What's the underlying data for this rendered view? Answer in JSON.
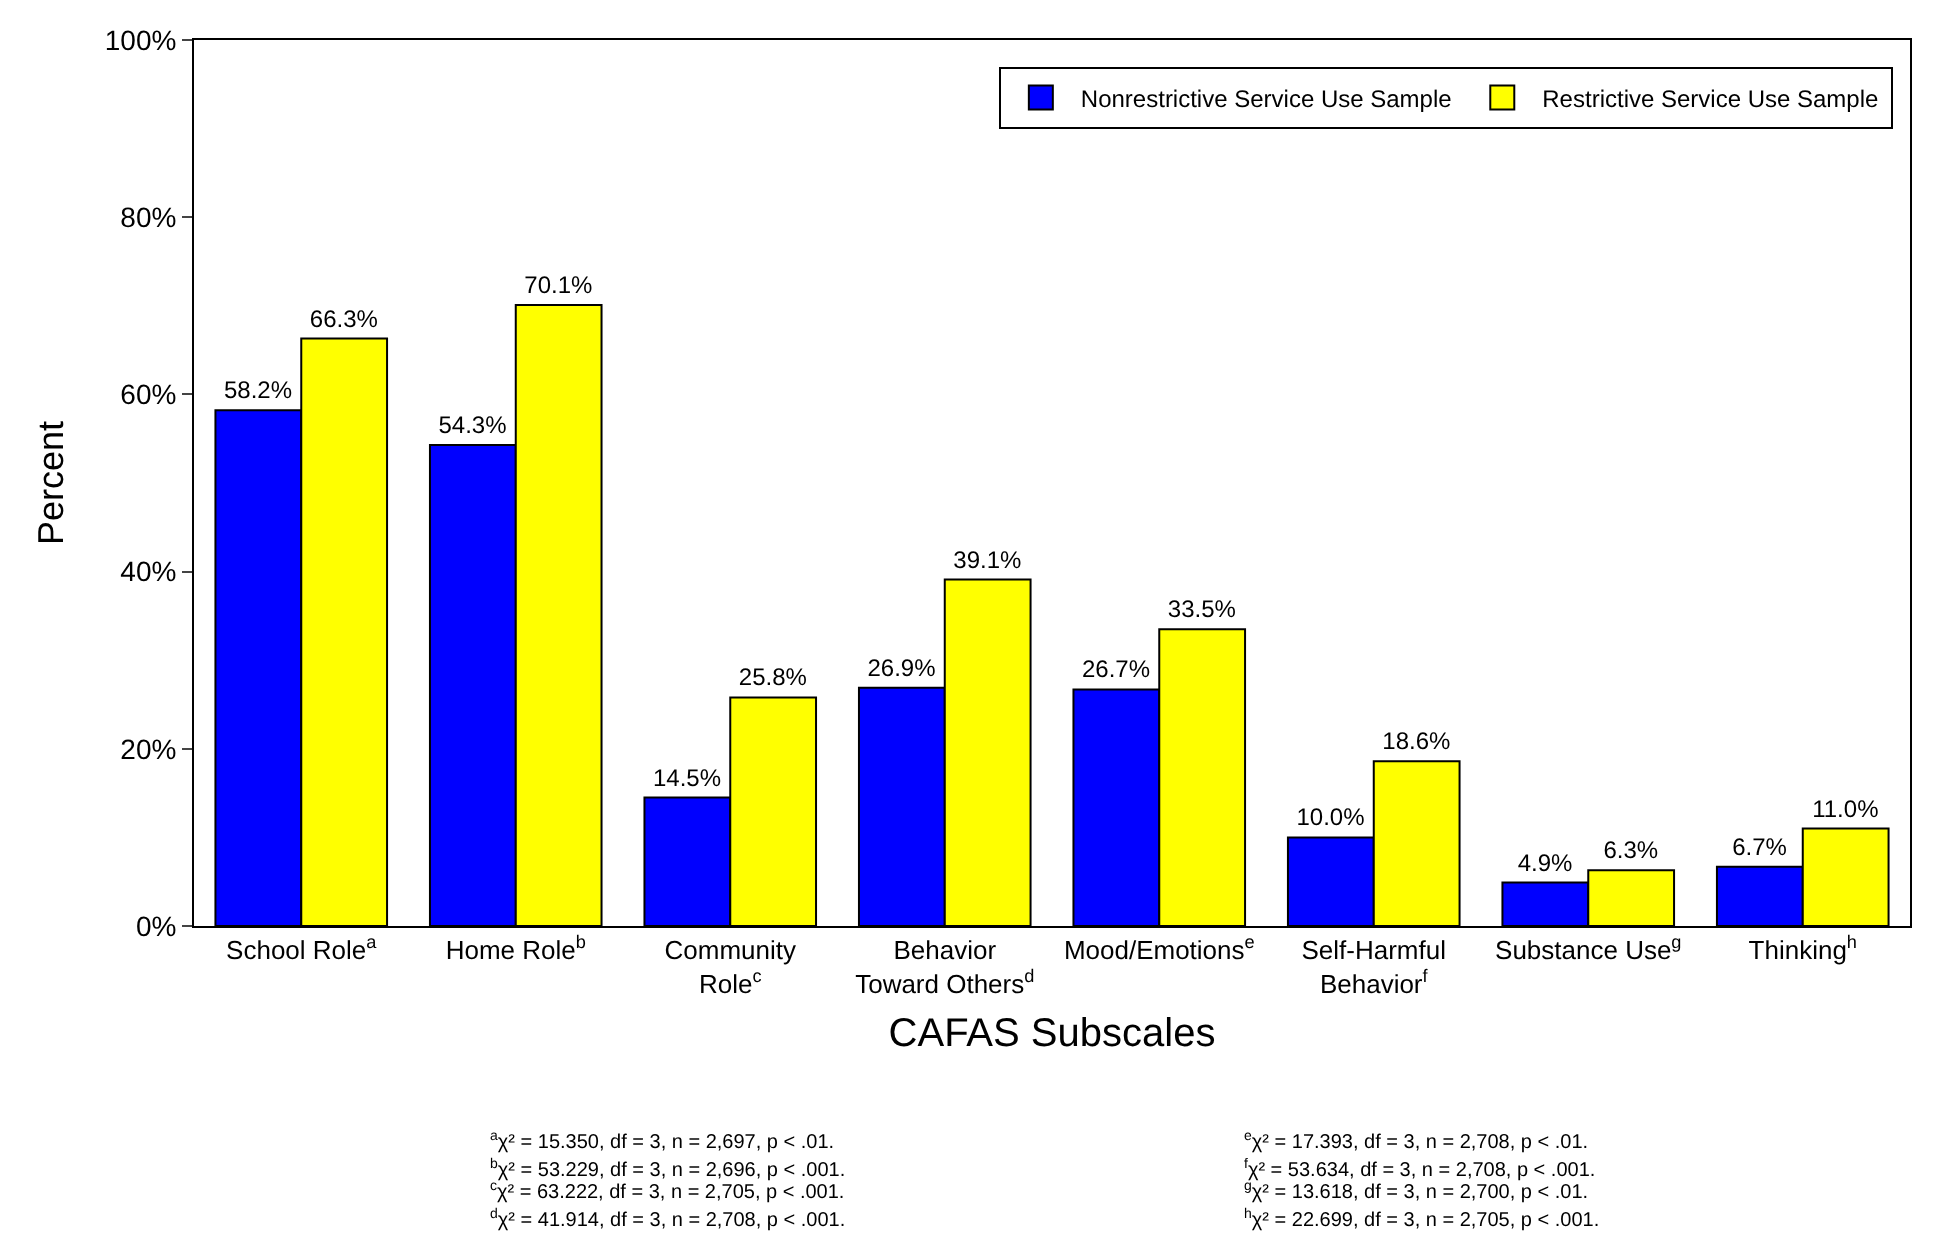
{
  "chart_data": {
    "type": "bar",
    "xlabel": "CAFAS Subscales",
    "ylabel": "Percent",
    "categories": [
      "School Role$^{a}$",
      "Home Role$^{b}$",
      "Community\nRole$^{c}$",
      "Behavior\nToward Others$^{d}$",
      "Mood/Emotions$^{e}$",
      "Self-Harmful\nBehavior$^{f}$",
      "Substance Use$^{g}$",
      "Thinking$^{h}$"
    ],
    "series": [
      {
        "name": "Nonrestrictive Service Use Sample",
        "color": "#0000ff",
        "values": [
          58.2,
          54.3,
          14.5,
          26.9,
          26.7,
          10.0,
          4.9,
          6.7
        ],
        "value_labels": [
          "58.2%",
          "54.3%",
          "14.5%",
          "26.9%",
          "26.7%",
          "10.0%",
          "4.9%",
          "6.7%"
        ]
      },
      {
        "name": "Restrictive Service Use Sample",
        "color": "#ffff00",
        "values": [
          66.3,
          70.1,
          25.8,
          39.1,
          33.5,
          18.6,
          6.3,
          11.0
        ],
        "value_labels": [
          "66.3%",
          "70.1%",
          "25.8%",
          "39.1%",
          "33.5%",
          "18.6%",
          "6.3%",
          "11.0%"
        ]
      }
    ],
    "ylim": [
      0,
      100
    ],
    "yticks": [
      {
        "value": 0,
        "label": "0%"
      },
      {
        "value": 20,
        "label": "20%"
      },
      {
        "value": 40,
        "label": "40%"
      },
      {
        "value": 60,
        "label": "60%"
      },
      {
        "value": 80,
        "label": "80%"
      },
      {
        "value": 100,
        "label": "100%"
      }
    ],
    "grid": false,
    "legend": "top right",
    "annotations": [
      "$^{a}$χ² = 15.350, df = 3, n = 2,697, p < .01.",
      "$^{b}$χ² = 53.229, df = 3, n = 2,696, p < .001.",
      "$^{c}$χ² = 63.222, df = 3, n = 2,705, p < .001.",
      "$^{d}$χ² = 41.914, df = 3, n = 2,708, p < .001.",
      "$^{e}$χ² = 17.393, df = 3, n = 2,708, p < .01.",
      "$^{f}$χ² = 53.634, df = 3, n = 2,708, p < .001.",
      "$^{g}$χ² = 13.618, df = 3, n = 2,700, p < .01.",
      "$^{h}$χ² = 22.699, df = 3, n = 2,705, p < .001."
    ]
  }
}
